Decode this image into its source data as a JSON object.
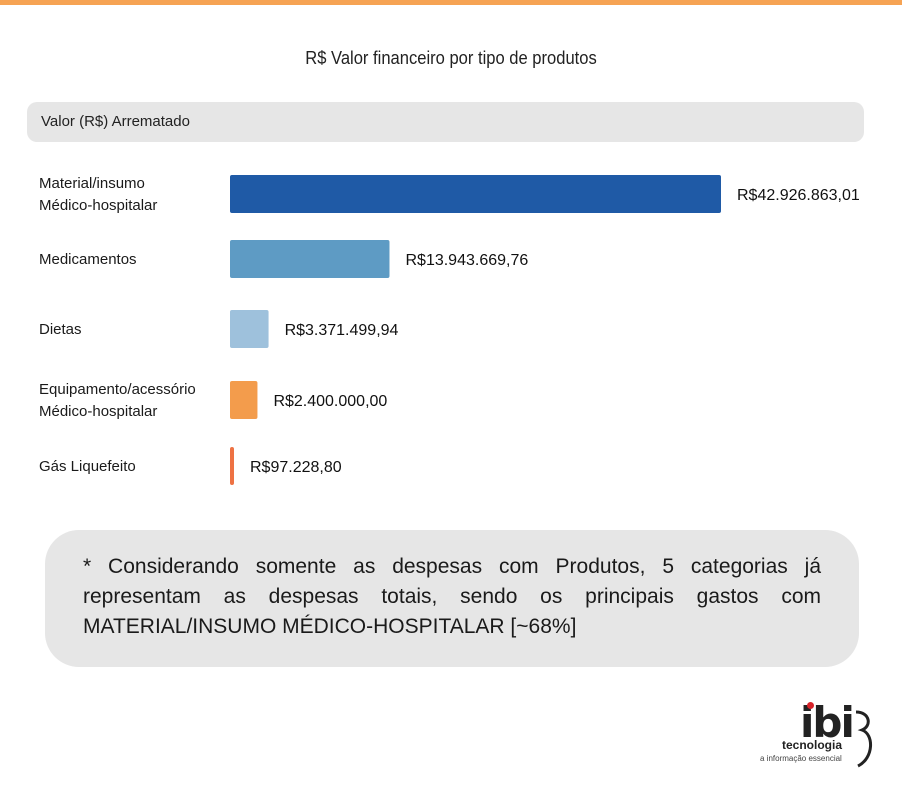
{
  "page": {
    "accent_color": "#f6a354"
  },
  "chart_data": {
    "type": "bar",
    "orientation": "horizontal",
    "title": "R$ Valor financeiro por tipo de produtos",
    "series_header": "Valor (R$) Arrematado",
    "categories": [
      [
        "Material/insumo",
        "Médico-hospitalar"
      ],
      [
        "Medicamentos"
      ],
      [
        "Dietas"
      ],
      [
        "Equipamento/acessório",
        "Médico-hospitalar"
      ],
      [
        "Gás Liquefeito"
      ]
    ],
    "values": [
      42926863.01,
      13943669.76,
      3371499.94,
      2400000.0,
      97228.8
    ],
    "value_labels": [
      "R$42.926.863,01",
      "R$13.943.669,76",
      "R$3.371.499,94",
      "R$2.400.000,00",
      "R$97.228,80"
    ],
    "bar_colors": [
      "#1f5aa6",
      "#5e9bc4",
      "#9ec1dc",
      "#f39c4c",
      "#ee7243"
    ],
    "legend": "none",
    "grid": false
  },
  "note": {
    "text": "* Considerando somente as despesas com Produtos, 5 categorias já representam as despesas totais, sendo os principais gastos com MATERIAL/INSUMO MÉDICO-HOSPITALAR [~68%]"
  },
  "logo": {
    "mark": "ibi",
    "name": "tecnologia",
    "tagline": "a informação essencial"
  }
}
